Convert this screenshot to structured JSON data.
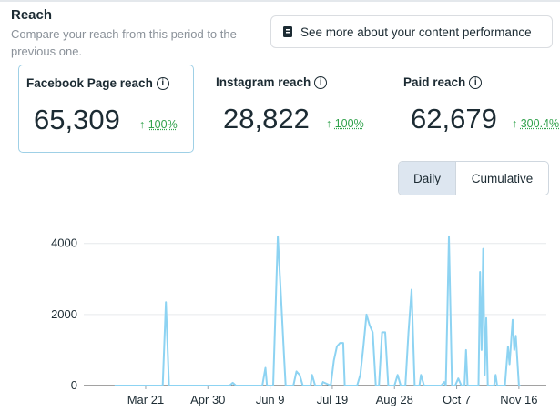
{
  "header": {
    "title": "Reach",
    "subtitle": "Compare your reach from this period to the previous one."
  },
  "button": {
    "label": "See more about your content performance"
  },
  "metrics": [
    {
      "label": "Facebook Page reach",
      "value": "65,309",
      "change": "100%"
    },
    {
      "label": "Instagram reach",
      "value": "28,822",
      "change": "100%"
    },
    {
      "label": "Paid reach",
      "value": "62,679",
      "change": "300.4%"
    }
  ],
  "toggle": {
    "options": [
      "Daily",
      "Cumulative"
    ]
  },
  "chart_data": {
    "type": "line",
    "x": [
      0,
      31,
      33,
      35,
      74,
      76,
      78,
      95,
      97,
      98,
      102,
      105,
      107,
      109,
      110,
      115,
      117,
      119,
      121,
      126,
      127,
      129,
      133,
      134,
      139,
      141,
      143,
      145,
      147,
      148,
      156,
      158,
      160,
      162,
      164,
      166,
      168,
      170,
      172,
      174,
      176,
      180,
      182,
      184,
      187,
      189,
      191,
      193,
      196,
      197,
      199,
      210,
      212,
      213,
      214,
      215,
      217,
      219,
      221,
      223,
      225,
      226,
      227,
      234,
      235,
      236,
      237,
      238,
      239,
      240,
      244,
      245,
      246,
      251,
      253,
      254,
      256,
      257,
      258,
      260,
      261
    ],
    "series": [
      {
        "color": "#8dd3f2",
        "values": [
          0,
          0,
          2350,
          0,
          0,
          80,
          0,
          0,
          500,
          0,
          0,
          4200,
          2500,
          800,
          0,
          0,
          400,
          300,
          0,
          0,
          300,
          0,
          0,
          100,
          0,
          700,
          1100,
          1200,
          1200,
          0,
          0,
          300,
          1100,
          2000,
          1700,
          1500,
          0,
          0,
          1500,
          1500,
          0,
          0,
          300,
          0,
          0,
          1500,
          2700,
          0,
          0,
          300,
          0,
          0,
          100,
          0,
          2000,
          4200,
          0,
          0,
          200,
          0,
          0,
          1000,
          0,
          0,
          3200,
          1000,
          3850,
          300,
          1900,
          0,
          0,
          300,
          0,
          0,
          1100,
          600,
          1850,
          1000,
          1400,
          0,
          0
        ]
      }
    ],
    "xlim": [
      0,
      262
    ],
    "xticks": [
      {
        "value": 20,
        "label": "Mar 21"
      },
      {
        "value": 60,
        "label": "Apr 30"
      },
      {
        "value": 100,
        "label": "Jun 9"
      },
      {
        "value": 140,
        "label": "Jul 19"
      },
      {
        "value": 180,
        "label": "Aug 28"
      },
      {
        "value": 220,
        "label": "Oct 7"
      },
      {
        "value": 260,
        "label": "Nov 16"
      }
    ],
    "ylim": [
      0,
      4300
    ],
    "yticks": [
      0,
      2000,
      4000
    ],
    "grid": true
  }
}
